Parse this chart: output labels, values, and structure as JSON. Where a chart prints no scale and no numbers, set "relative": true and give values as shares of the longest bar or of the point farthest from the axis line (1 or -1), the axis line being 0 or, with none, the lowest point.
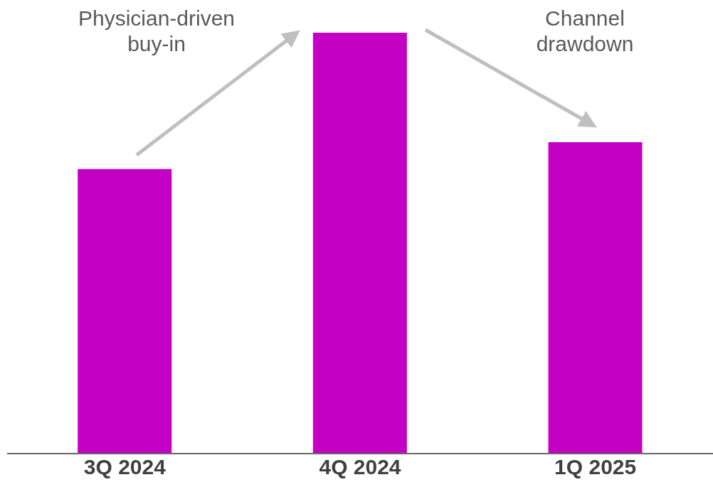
{
  "chart_data": {
    "type": "bar",
    "relative": true,
    "categories": [
      "3Q 2024",
      "4Q 2024",
      "1Q 2025"
    ],
    "values": [
      0.676,
      1,
      0.74
    ],
    "color": "#c500c5",
    "annotations": [
      "Physician-driven buy-in",
      "Channel drawdown"
    ]
  }
}
